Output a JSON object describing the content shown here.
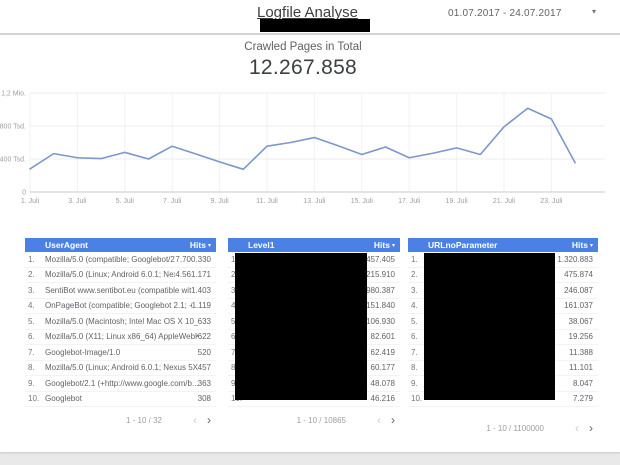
{
  "header": {
    "title": "Logfile Analyse",
    "date_range": "01.07.2017 - 24.07.2017",
    "date_dropdown_icon": "▾",
    "redacted_subtitle": true
  },
  "scorecard": {
    "label": "Crawled Pages in Total",
    "value": "12.267.858"
  },
  "chart_data": {
    "type": "line",
    "title": "",
    "x_days_of_july": [
      1,
      2,
      3,
      4,
      5,
      6,
      7,
      8,
      9,
      10,
      11,
      12,
      13,
      14,
      15,
      16,
      17,
      18,
      19,
      20,
      21,
      22,
      23,
      24
    ],
    "values_tsd": [
      280,
      465,
      415,
      405,
      480,
      400,
      555,
      460,
      365,
      275,
      555,
      600,
      660,
      560,
      455,
      545,
      415,
      470,
      535,
      455,
      790,
      1015,
      885,
      355
    ],
    "value_unit": "Tsd",
    "ylim": [
      0,
      1200000
    ],
    "x_tick_labels": [
      "1. Juli",
      "3. Juli",
      "5. Juli",
      "7. Juli",
      "9. Juli",
      "11. Juli",
      "13. Juli",
      "15. Juli",
      "17. Juli",
      "19. Juli",
      "21. Juli",
      "23. Juli"
    ],
    "y_ticks": [
      {
        "value": 1200,
        "label": "1,2 Mio."
      },
      {
        "value": 800,
        "label": "800 Tsd."
      },
      {
        "value": 400,
        "label": "400 Tsd."
      },
      {
        "value": 0,
        "label": "0"
      }
    ],
    "grid": true,
    "legend": "none",
    "line_color": "#7b97cb"
  },
  "style": {
    "table_header_color": "#4b80e4"
  },
  "tables": [
    {
      "col1_header": "UserAgent",
      "col2_header": "Hits",
      "sort_icon": "▾",
      "redacted": false,
      "rows": [
        {
          "num": "1.",
          "name": "Mozilla/5.0 (compatible; Googlebot/2.1; +ht...",
          "hits": "7.700.330"
        },
        {
          "num": "2.",
          "name": "Mozilla/5.0 (Linux; Android 6.0.1; Nexus 5X ...",
          "hits": "4.561.171"
        },
        {
          "num": "3.",
          "name": "SentiBot www.sentibot.eu (compatible with ...",
          "hits": "1.403"
        },
        {
          "num": "4.",
          "name": "OnPageBot (compatible; Googlebot 2.1; +htt...",
          "hits": "1.119"
        },
        {
          "num": "5.",
          "name": "Mozilla/5.0 (Macintosh; Intel Mac OS X 10_...",
          "hits": "633"
        },
        {
          "num": "6.",
          "name": "Mozilla/5.0 (X11; Linux x86_64) AppleWebK...",
          "hits": "622"
        },
        {
          "num": "7.",
          "name": "Googlebot-Image/1.0",
          "hits": "520"
        },
        {
          "num": "8.",
          "name": "Mozilla/5.0 (Linux; Android 6.0.1; Nexus 5X ...",
          "hits": "457"
        },
        {
          "num": "9.",
          "name": "Googlebot/2.1 (+http://www.google.com/b...",
          "hits": "363"
        },
        {
          "num": "10.",
          "name": "Googlebot",
          "hits": "308"
        }
      ],
      "pagination": "1 - 10 / 32",
      "prev_icon": "‹",
      "next_icon": "›"
    },
    {
      "col1_header": "Level1",
      "col2_header": "Hits",
      "sort_icon": "▾",
      "redacted": true,
      "rows": [
        {
          "num": "1.",
          "name": "",
          "hits": "6.457.405"
        },
        {
          "num": "2.",
          "name": "",
          "hits": "2.215.910"
        },
        {
          "num": "3.",
          "name": "",
          "hits": "980.387"
        },
        {
          "num": "4.",
          "name": "",
          "hits": "151.840"
        },
        {
          "num": "5.",
          "name": "",
          "hits": "106.930"
        },
        {
          "num": "6.",
          "name": "",
          "hits": "82.601"
        },
        {
          "num": "7.",
          "name": "",
          "hits": "62.419"
        },
        {
          "num": "8.",
          "name": "",
          "hits": "60.177"
        },
        {
          "num": "9.",
          "name": "",
          "hits": "48.078"
        },
        {
          "num": "10.",
          "name": "",
          "hits": "46.216"
        }
      ],
      "pagination": "1 - 10 / 10865",
      "prev_icon": "‹",
      "next_icon": "›"
    },
    {
      "col1_header": "URLnoParameter",
      "col2_header": "Hits",
      "sort_icon": "▾",
      "redacted": true,
      "rows": [
        {
          "num": "1.",
          "name": "",
          "hits": "1.320.883"
        },
        {
          "num": "2.",
          "name": "",
          "hits": "475.874"
        },
        {
          "num": "3.",
          "name": "",
          "hits": "246.087"
        },
        {
          "num": "4.",
          "name": "",
          "hits": "161.037"
        },
        {
          "num": "5.",
          "name": "",
          "hits": "38.067"
        },
        {
          "num": "6.",
          "name": "",
          "hits": "19.256"
        },
        {
          "num": "7.",
          "name": "",
          "hits": "11.388"
        },
        {
          "num": "8.",
          "name": "",
          "hits": "11.101"
        },
        {
          "num": "9.",
          "name": "",
          "hits": "8.047"
        },
        {
          "num": "10.",
          "name": "",
          "hits": "7.279"
        }
      ],
      "pagination": "1 - 10 / 1100000",
      "prev_icon": "‹",
      "next_icon": "›"
    }
  ]
}
